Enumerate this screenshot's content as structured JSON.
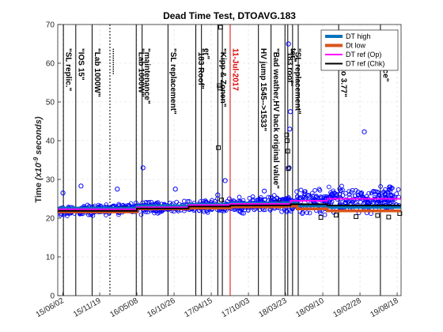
{
  "chart_data": {
    "type": "scatter",
    "title": "Dead Time Test, DTOAVG.183",
    "ylabel": "Time (x10^{-9} seconds)",
    "ylabel_main": "Time ",
    "ylabel_unit": "x10",
    "ylabel_exp": "-9",
    "ylabel_tail": " seconds",
    "ylim": [
      0,
      70
    ],
    "yticks": [
      "0",
      "10",
      "20",
      "30",
      "40",
      "50",
      "60",
      "70"
    ],
    "xlim": [
      "2015-05-10",
      "2019-09-05"
    ],
    "xticks": [
      {
        "date": "2015-06-02",
        "label": "15/06/02"
      },
      {
        "date": "2015-11-19",
        "label": "15/11/19"
      },
      {
        "date": "2016-05-08",
        "label": "16/05/08"
      },
      {
        "date": "2016-10-26",
        "label": "16/10/26"
      },
      {
        "date": "2017-04-15",
        "label": "17/04/15"
      },
      {
        "date": "2017-10-03",
        "label": "17/10/03"
      },
      {
        "date": "2018-03-23",
        "label": "18/03/23"
      },
      {
        "date": "2018-09-10",
        "label": "18/09/10"
      },
      {
        "date": "2019-02-28",
        "label": "19/02/28"
      },
      {
        "date": "2019-08-18",
        "label": "19/08/18"
      }
    ],
    "grid": true,
    "legend": "top-right",
    "series": [
      {
        "name": "DT high",
        "color": "#0072bd",
        "style": "thick-step",
        "x": [
          "2015-05-10",
          "2016-01-05",
          "2016-05-08",
          "2017-01-01",
          "2017-07-11",
          "2018-03-10",
          "2018-05-15",
          "2018-10-01",
          "2019-09-05"
        ],
        "y": [
          22.6,
          22.6,
          23.2,
          23.6,
          23.9,
          24.0,
          23.2,
          22.8,
          22.8
        ]
      },
      {
        "name": "Dt low",
        "color": "#d95319",
        "style": "thick-step",
        "x": [
          "2015-05-10",
          "2016-01-05",
          "2016-05-08",
          "2017-01-01",
          "2017-07-11",
          "2018-03-10",
          "2018-05-15",
          "2018-10-01",
          "2019-09-05"
        ],
        "y": [
          21.6,
          21.6,
          22.4,
          22.6,
          22.9,
          23.1,
          22.4,
          21.9,
          21.9
        ]
      },
      {
        "name": "DT ref (Op)",
        "color": "#ff00ff",
        "style": "step",
        "x": [
          "2015-05-10",
          "2016-05-08",
          "2017-01-01",
          "2017-07-11",
          "2018-04-15",
          "2018-10-01",
          "2019-09-05"
        ],
        "y": [
          22.3,
          22.8,
          23.4,
          23.7,
          24.5,
          25.0,
          25.0
        ]
      },
      {
        "name": "DT ref (Chk)",
        "color": "#000000",
        "style": "step",
        "x": [
          "2015-05-10",
          "2016-05-08",
          "2017-01-01",
          "2017-07-11",
          "2018-04-15",
          "2018-10-01",
          "2019-09-05"
        ],
        "y": [
          21.9,
          22.5,
          23.0,
          23.3,
          23.6,
          23.3,
          23.3
        ]
      }
    ],
    "scatter_blue": {
      "color": "#0000ff",
      "band": [
        {
          "x": "2015-05-20",
          "lo": 20.0,
          "hi": 23.5
        },
        {
          "x": "2016-05-08",
          "lo": 20.5,
          "hi": 24.5
        },
        {
          "x": "2017-07-11",
          "lo": 21.0,
          "hi": 25.5
        },
        {
          "x": "2018-01-01",
          "lo": 20.8,
          "hi": 26.5
        },
        {
          "x": "2018-08-01",
          "lo": 20.0,
          "hi": 29.0
        },
        {
          "x": "2019-09-01",
          "lo": 20.0,
          "hi": 30.0
        }
      ],
      "outliers": [
        {
          "x": "2015-08-25",
          "y": 28.3
        },
        {
          "x": "2016-02-08",
          "y": 27.5
        },
        {
          "x": "2016-06-05",
          "y": 33.0
        },
        {
          "x": "2016-11-01",
          "y": 27.5
        },
        {
          "x": "2017-06-18",
          "y": 29.7
        },
        {
          "x": "2017-05-15",
          "y": 26.0
        },
        {
          "x": "2018-04-14",
          "y": 47.5
        },
        {
          "x": "2018-04-11",
          "y": 43.0
        },
        {
          "x": "2018-04-05",
          "y": 65.0
        },
        {
          "x": "2018-04-08",
          "y": 33.0
        },
        {
          "x": "2019-03-20",
          "y": 42.3
        },
        {
          "x": "2015-06-03",
          "y": 26.5
        },
        {
          "x": "2017-12-15",
          "y": 27.0
        }
      ]
    },
    "scatter_black": {
      "color": "#000000",
      "points": [
        {
          "x": "2015-06-05",
          "y": 21.8
        },
        {
          "x": "2015-09-10",
          "y": 22.0
        },
        {
          "x": "2015-12-20",
          "y": 22.3
        },
        {
          "x": "2016-03-10",
          "y": 22.5
        },
        {
          "x": "2016-09-01",
          "y": 22.8
        },
        {
          "x": "2017-02-01",
          "y": 23.1
        },
        {
          "x": "2017-05-28",
          "y": 69.3
        },
        {
          "x": "2017-05-22",
          "y": 54.2
        },
        {
          "x": "2017-05-24",
          "y": 53.6
        },
        {
          "x": "2017-05-18",
          "y": 38.2
        },
        {
          "x": "2017-06-01",
          "y": 24.7
        },
        {
          "x": "2018-03-28",
          "y": 41.5
        },
        {
          "x": "2018-03-30",
          "y": 40.0
        },
        {
          "x": "2018-04-02",
          "y": 37.3
        },
        {
          "x": "2018-04-04",
          "y": 32.8
        },
        {
          "x": "2018-09-01",
          "y": 20.2
        },
        {
          "x": "2018-11-10",
          "y": 20.8
        },
        {
          "x": "2019-02-10",
          "y": 20.4
        },
        {
          "x": "2019-05-20",
          "y": 20.7
        },
        {
          "x": "2019-07-10",
          "y": 20.3
        },
        {
          "x": "2018-02-20",
          "y": 24.0
        },
        {
          "x": "2019-08-30",
          "y": 21.2
        }
      ]
    },
    "events": [
      {
        "x": "2015-06-05",
        "label": "\"SL replic.\"",
        "color": "#000000",
        "dash": false
      },
      {
        "x": "2015-08-01",
        "label": "\"IOS 15\"",
        "color": "#000000",
        "dash": false
      },
      {
        "x": "2015-10-15",
        "label": "\"Lab   1000W\"",
        "color": "#000000",
        "dash": false
      },
      {
        "x": "2016-01-05",
        "label": "............",
        "color": "#000000",
        "dash": true
      },
      {
        "x": "2016-05-05",
        "label": "\"Lab 1000W\"",
        "color": "#000000",
        "dash": false
      },
      {
        "x": "2016-06-01",
        "label": "\"maintenance\"",
        "color": "#000000",
        "dash": false
      },
      {
        "x": "2016-09-28",
        "label": "\"SL replacement\"",
        "color": "#000000",
        "dash": false
      },
      {
        "x": "2017-02-03",
        "label": "\"183 Roof\"",
        "color": "#000000",
        "dash": false
      },
      {
        "x": "2017-03-01",
        "label": "er\"",
        "color": "#000000",
        "dash": false
      },
      {
        "x": "2017-05-15",
        "label": "\"Kipp & Zonen\"",
        "color": "#000000",
        "dash": false
      },
      {
        "x": "2017-06-05",
        "label": "",
        "color": "#000000",
        "dash": false
      },
      {
        "x": "2017-07-11",
        "label": "11-Jul-2017",
        "color": "#e00000",
        "dash": false
      },
      {
        "x": "2017-11-18",
        "label": "HV jump  1545-->1533\"",
        "color": "#000000",
        "dash": false
      },
      {
        "x": "2018-01-15",
        "label": "\"Bad weather,HV back original value\"",
        "color": "#000000",
        "dash": false
      },
      {
        "x": "2018-03-20",
        "label": "\"183 roof\"",
        "color": "#000000",
        "dash": false
      },
      {
        "x": "2018-04-02",
        "label": "ter\"",
        "color": "#000000",
        "dash": false
      },
      {
        "x": "2018-04-24",
        "label": "\"SL replacement\"",
        "color": "#000000",
        "dash": false
      },
      {
        "x": "2018-05-20",
        "label": "",
        "color": "#000000",
        "dash": false
      },
      {
        "x": "2018-11-22",
        "label": "back to 3.77\"",
        "color": "#000000",
        "dash": false
      },
      {
        "x": "2019-06-02",
        "label": "tenance\"",
        "color": "#000000",
        "dash": false
      }
    ]
  }
}
